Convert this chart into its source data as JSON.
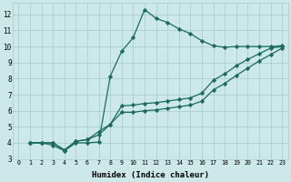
{
  "xlabel": "Humidex (Indice chaleur)",
  "background_color": "#cce8e8",
  "grid_color": "#aacfcf",
  "line_color": "#1a6b5a",
  "marker": "D",
  "markersize": 2.2,
  "linewidth": 0.9,
  "xlim": [
    -0.5,
    23.5
  ],
  "ylim": [
    3.0,
    12.7
  ],
  "xticks": [
    0,
    1,
    2,
    3,
    4,
    5,
    6,
    7,
    8,
    9,
    10,
    11,
    12,
    13,
    14,
    15,
    16,
    17,
    18,
    19,
    20,
    21,
    22,
    23
  ],
  "yticks": [
    3,
    4,
    5,
    6,
    7,
    8,
    9,
    10,
    11,
    12
  ],
  "series": [
    {
      "x": [
        1,
        2,
        3,
        4,
        5,
        6,
        7,
        8,
        9,
        10,
        11,
        12,
        13,
        14,
        15,
        16,
        17,
        18,
        19,
        20,
        21,
        22,
        23
      ],
      "y": [
        4.0,
        4.0,
        3.85,
        3.5,
        4.0,
        4.0,
        4.05,
        8.15,
        9.7,
        10.55,
        12.3,
        11.75,
        11.5,
        11.1,
        10.8,
        10.35,
        10.05,
        9.95,
        10.0,
        10.0,
        10.0,
        10.0,
        10.05
      ]
    },
    {
      "x": [
        1,
        2,
        3,
        4,
        5,
        6,
        7,
        8,
        9,
        10,
        11,
        12,
        13,
        14,
        15,
        16,
        17,
        18,
        19,
        20,
        21,
        22,
        23
      ],
      "y": [
        4.0,
        4.0,
        4.0,
        3.55,
        4.1,
        4.2,
        4.7,
        5.15,
        6.3,
        6.35,
        6.45,
        6.5,
        6.6,
        6.7,
        6.8,
        7.1,
        7.9,
        8.3,
        8.8,
        9.2,
        9.55,
        9.9,
        10.0
      ]
    },
    {
      "x": [
        1,
        2,
        3,
        4,
        5,
        6,
        7,
        8,
        9,
        10,
        11,
        12,
        13,
        14,
        15,
        16,
        17,
        18,
        19,
        20,
        21,
        22,
        23
      ],
      "y": [
        4.0,
        4.0,
        4.0,
        3.55,
        4.1,
        4.2,
        4.5,
        5.15,
        5.9,
        5.9,
        6.0,
        6.05,
        6.15,
        6.25,
        6.35,
        6.6,
        7.3,
        7.7,
        8.2,
        8.65,
        9.1,
        9.5,
        9.9
      ]
    }
  ]
}
